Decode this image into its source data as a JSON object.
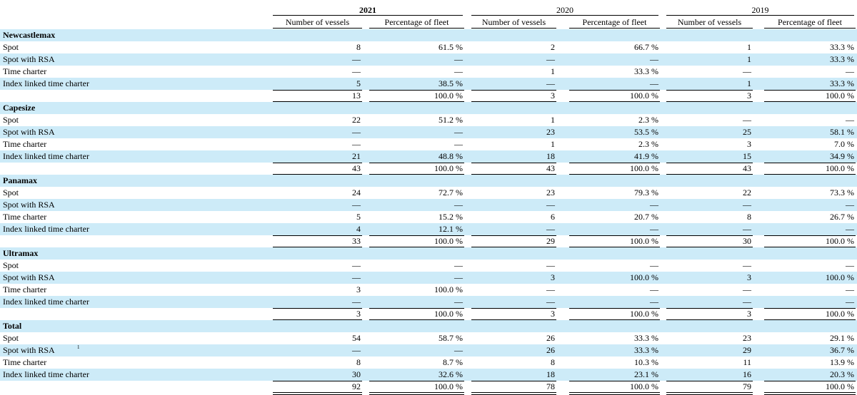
{
  "header": {
    "top_text": "",
    "years": [
      {
        "label": "2021",
        "bold": true
      },
      {
        "label": "2020",
        "bold": false
      },
      {
        "label": "2019",
        "bold": false
      }
    ],
    "subheaders": [
      "Number of vessels",
      "Percentage of fleet"
    ]
  },
  "sections": [
    {
      "title": "Newcastlemax",
      "rows": [
        {
          "label": "Spot",
          "values": [
            "8",
            "61.5 %",
            "2",
            "66.7 %",
            "1",
            "33.3 %"
          ]
        },
        {
          "label": "Spot with RSA",
          "values": [
            "—",
            "—",
            "—",
            "—",
            "1",
            "33.3 %"
          ]
        },
        {
          "label": "Time charter",
          "values": [
            "—",
            "—",
            "1",
            "33.3 %",
            "—",
            "—"
          ]
        },
        {
          "label": "Index linked time charter",
          "values": [
            "5",
            "38.5 %",
            "—",
            "—",
            "1",
            "33.3 %"
          ]
        }
      ],
      "total": [
        "13",
        "100.0 %",
        "3",
        "100.0 %",
        "3",
        "100.0 %"
      ]
    },
    {
      "title": "Capesize",
      "rows": [
        {
          "label": "Spot",
          "values": [
            "22",
            "51.2 %",
            "1",
            "2.3 %",
            "—",
            "—"
          ]
        },
        {
          "label": "Spot with RSA",
          "values": [
            "—",
            "—",
            "23",
            "53.5 %",
            "25",
            "58.1 %"
          ]
        },
        {
          "label": "Time charter",
          "values": [
            "—",
            "—",
            "1",
            "2.3 %",
            "3",
            "7.0 %"
          ]
        },
        {
          "label": "Index linked time charter",
          "values": [
            "21",
            "48.8 %",
            "18",
            "41.9 %",
            "15",
            "34.9 %"
          ]
        }
      ],
      "total": [
        "43",
        "100.0 %",
        "43",
        "100.0 %",
        "43",
        "100.0 %"
      ]
    },
    {
      "title": "Panamax",
      "rows": [
        {
          "label": "Spot",
          "values": [
            "24",
            "72.7 %",
            "23",
            "79.3 %",
            "22",
            "73.3 %"
          ]
        },
        {
          "label": "Spot with RSA",
          "values": [
            "—",
            "—",
            "—",
            "—",
            "—",
            "—"
          ]
        },
        {
          "label": "Time charter",
          "values": [
            "5",
            "15.2 %",
            "6",
            "20.7 %",
            "8",
            "26.7 %"
          ]
        },
        {
          "label": "Index linked time charter",
          "values": [
            "4",
            "12.1 %",
            "—",
            "—",
            "—",
            "—"
          ]
        }
      ],
      "total": [
        "33",
        "100.0 %",
        "29",
        "100.0 %",
        "30",
        "100.0 %"
      ]
    },
    {
      "title": "Ultramax",
      "rows": [
        {
          "label": "Spot",
          "values": [
            "—",
            "—",
            "—",
            "—",
            "—",
            "—"
          ]
        },
        {
          "label": "Spot with RSA",
          "values": [
            "—",
            "—",
            "3",
            "100.0 %",
            "3",
            "100.0 %"
          ]
        },
        {
          "label": "Time charter",
          "values": [
            "3",
            "100.0 %",
            "—",
            "—",
            "—",
            "—"
          ]
        },
        {
          "label": "Index linked time charter",
          "values": [
            "—",
            "—",
            "—",
            "—",
            "—",
            "—"
          ]
        }
      ],
      "total": [
        "3",
        "100.0 %",
        "3",
        "100.0 %",
        "3",
        "100.0 %"
      ]
    },
    {
      "title": "Total",
      "rows": [
        {
          "label": "Spot",
          "values": [
            "54",
            "58.7 %",
            "26",
            "33.3 %",
            "23",
            "29.1 %"
          ]
        },
        {
          "label": "Spot with RSA",
          "sup": "1",
          "values": [
            "—",
            "—",
            "26",
            "33.3 %",
            "29",
            "36.7 %"
          ]
        },
        {
          "label": "Time charter",
          "values": [
            "8",
            "8.7 %",
            "8",
            "10.3 %",
            "11",
            "13.9 %"
          ]
        },
        {
          "label": "Index linked time charter",
          "values": [
            "30",
            "32.6 %",
            "18",
            "23.1 %",
            "16",
            "20.3 %"
          ]
        }
      ],
      "total": [
        "92",
        "100.0 %",
        "78",
        "100.0 %",
        "79",
        "100.0 %"
      ]
    }
  ],
  "colors": {
    "shade": "#cdebf8"
  }
}
